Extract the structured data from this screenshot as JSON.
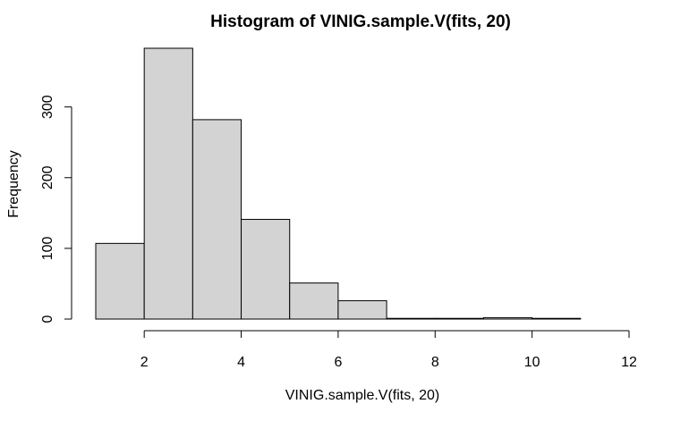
{
  "chart_data": {
    "type": "bar",
    "subtype": "histogram",
    "title": "Histogram of VINIG.sample.V(fits, 20)",
    "xlabel": "VINIG.sample.V(fits, 20)",
    "ylabel": "Frequency",
    "bins": [
      {
        "x0": 1,
        "x1": 2,
        "count": 107
      },
      {
        "x0": 2,
        "x1": 3,
        "count": 383
      },
      {
        "x0": 3,
        "x1": 4,
        "count": 282
      },
      {
        "x0": 4,
        "x1": 5,
        "count": 141
      },
      {
        "x0": 5,
        "x1": 6,
        "count": 51
      },
      {
        "x0": 6,
        "x1": 7,
        "count": 26
      },
      {
        "x0": 7,
        "x1": 8,
        "count": 1
      },
      {
        "x0": 8,
        "x1": 9,
        "count": 1
      },
      {
        "x0": 9,
        "x1": 10,
        "count": 2
      },
      {
        "x0": 10,
        "x1": 11,
        "count": 1
      },
      {
        "x0": 11,
        "x1": 12,
        "count": 0
      }
    ],
    "xlim": [
      1,
      12
    ],
    "ylim": [
      0,
      383
    ],
    "xticks": [
      2,
      4,
      6,
      8,
      10,
      12
    ],
    "yticks": [
      0,
      100,
      200,
      300
    ],
    "bar_color": "#d3d3d3",
    "edge_color": "#000000",
    "grid": false,
    "legend": "none"
  }
}
